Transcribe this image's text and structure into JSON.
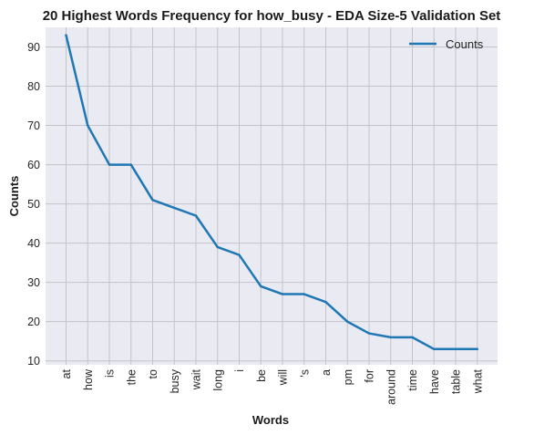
{
  "chart_data": {
    "type": "line",
    "title": "20 Highest Words Frequency for how_busy - EDA Size-5 Validation Set",
    "xlabel": "Words",
    "ylabel": "Counts",
    "categories": [
      "at",
      "how",
      "is",
      "the",
      "to",
      "busy",
      "wait",
      "long",
      "i",
      "be",
      "will",
      "'s",
      "a",
      "pm",
      "for",
      "around",
      "time",
      "have",
      "table",
      "what"
    ],
    "series": [
      {
        "name": "Counts",
        "values": [
          93,
          70,
          60,
          60,
          51,
          49,
          47,
          39,
          37,
          29,
          27,
          27,
          25,
          20,
          17,
          16,
          16,
          13,
          13,
          13
        ]
      }
    ],
    "ylim": [
      9,
      95
    ],
    "yticks": [
      10,
      20,
      30,
      40,
      50,
      60,
      70,
      80,
      90
    ],
    "grid": true,
    "legend_position": "top-right",
    "colors": {
      "line": "#1f77b4",
      "plot_bg": "#eaeaf2",
      "grid": "#c3c3c9"
    }
  }
}
